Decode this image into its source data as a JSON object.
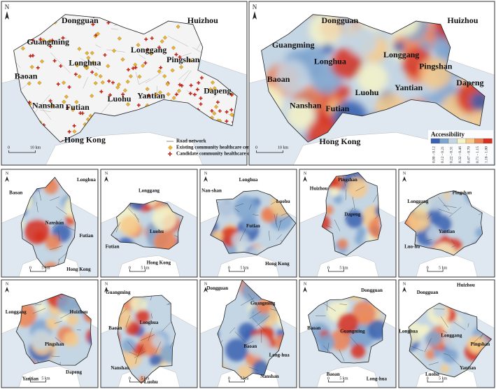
{
  "overview": {
    "north": "N",
    "regions": [
      "Dongguan",
      "Huizhou",
      "Guangming",
      "Longhua",
      "Longgang",
      "Pingshan",
      "Baoan",
      "Luohu",
      "Yantian",
      "Dapeng",
      "Nanshan",
      "Futian",
      "Hong Kong"
    ],
    "scale": [
      "0",
      "10 km"
    ],
    "legend": [
      "Road network",
      "Existing community healthcare centers",
      "Candidate community healthcare centers"
    ]
  },
  "accessibility": {
    "north": "N",
    "regions": [
      "Dongguan",
      "Huizhou",
      "Guangming",
      "Longgang",
      "Longhua",
      "Pingshan",
      "Baoan",
      "Luohu",
      "Yantian",
      "Dapeng",
      "Nanshan",
      "Futian",
      "Hong Kong"
    ],
    "scale": [
      "0",
      "10 km"
    ],
    "legend_title": "Accessibility",
    "classes": [
      "0.00 - 0.12",
      "0.12 - 0.21",
      "0.22 - 0.31",
      "0.32 - 0.46",
      "0.47 - 0.70",
      "0.71 - 1.15",
      "1.16 - 1.80"
    ],
    "colors": [
      "#3a62b0",
      "#7fa4cf",
      "#c4d5e3",
      "#f6f3c8",
      "#f6c98a",
      "#ec8052",
      "#d7301f"
    ]
  },
  "district_scale": [
    "0",
    "5 km"
  ],
  "districts": [
    {
      "regions": [
        "Baoan",
        "Longhua",
        "Nanshan",
        "Futian",
        "Hong Kong"
      ]
    },
    {
      "regions": [
        "Longgang",
        "Luohu",
        "Futian",
        "Hong Kong"
      ]
    },
    {
      "regions": [
        "Nan-shan",
        "Longhua",
        "Luohu",
        "Futian",
        "Hong Kong"
      ]
    },
    {
      "regions": [
        "Huizhou",
        "Pingshan",
        "Dapeng"
      ]
    },
    {
      "regions": [
        "Longgang",
        "Pingshan",
        "Yantian",
        "Luo-hu"
      ]
    },
    {
      "regions": [
        "Longgang",
        "Huizhou",
        "Pingshan",
        "Yantian",
        "Dapeng"
      ]
    },
    {
      "regions": [
        "Guangming",
        "Baoan",
        "Longhua",
        "Nanshan",
        "Luohu"
      ]
    },
    {
      "regions": [
        "Dongguan",
        "Guangming",
        "Baoan",
        "Long-hua",
        "Nanshan"
      ]
    },
    {
      "regions": [
        "Dongguan",
        "Baoan",
        "Guangming",
        "Baoan",
        "Long-hua"
      ]
    },
    {
      "regions": [
        "Huizhou",
        "Dongguan",
        "Longhua",
        "Longgang",
        "Pingshan",
        "Yantian",
        "Luohu"
      ]
    }
  ]
}
